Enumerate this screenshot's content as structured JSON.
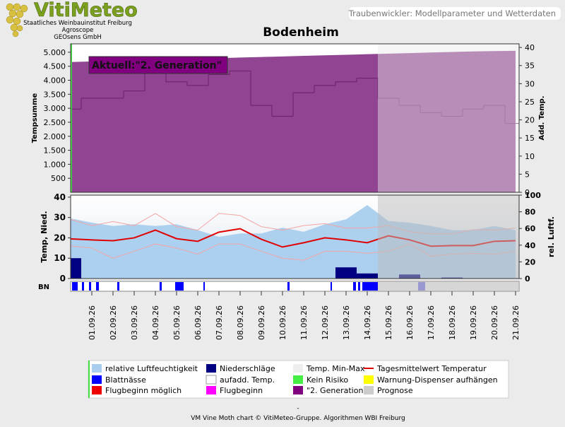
{
  "header": {
    "logo": "VitiMeteo",
    "lines": [
      "Staatliches Weinbauinstitut Freiburg",
      "Agroscope",
      "GEOsens GmbH"
    ],
    "caption": "Traubenwickler: Modellparameter und Wetterdaten"
  },
  "chart_data": [
    {
      "type": "area",
      "title": "Bodenheim",
      "annotation": "Aktuell:\"2. Generation\"",
      "ylabel": "Tempsumme",
      "y2label": "Add. Temp.",
      "ylim": [
        0,
        5300
      ],
      "yticks": [
        500,
        {
          "value": 1000,
          "label": "1.000"
        },
        {
          "value": 1500,
          "label": "1.500"
        },
        {
          "value": 2000,
          "label": "2.000"
        },
        {
          "value": 2500,
          "label": "2.500"
        },
        {
          "value": 3000,
          "label": "3.000"
        },
        {
          "value": 3500,
          "label": "3.500"
        },
        {
          "value": 4000,
          "label": "4.000"
        },
        {
          "value": 4500,
          "label": "4.500"
        },
        {
          "value": 5000,
          "label": "5.000"
        }
      ],
      "y2lim": [
        0,
        41
      ],
      "y2ticks": [
        0,
        5,
        10,
        15,
        20,
        25,
        30,
        35,
        40
      ],
      "series": [
        {
          "type": "area",
          "color": "#8b3a8b",
          "values": [
            4650,
            4670,
            4690,
            4710,
            4730,
            4750,
            4770,
            4790,
            4810,
            4830,
            4850,
            4870,
            4890,
            4910,
            4930,
            4950,
            4970,
            4990,
            5010,
            5030,
            5040,
            5050
          ]
        },
        {
          "type": "step",
          "axis": "y2",
          "color": "#6a1f6a",
          "values": [
            23,
            26,
            26,
            28,
            33,
            30.5,
            29.5,
            32.5,
            33.5,
            24,
            21,
            27.5,
            29.5,
            30.5,
            31.5,
            26,
            24,
            22,
            21,
            23,
            24,
            19
          ]
        }
      ]
    },
    {
      "type": "line",
      "ylabel": "Temp, Nied.",
      "y2label": "rel. Luftf.",
      "strip_label": "BN",
      "categories": [
        null,
        "01.09.26",
        "02.09.26",
        "03.09.26",
        "04.09.26",
        "05.09.26",
        "06.09.26",
        "07.09.26",
        "08.09.26",
        "09.09.26",
        "10.09.26",
        "11.09.26",
        "12.09.26",
        "13.09.26",
        "14.09.26",
        "15.09.26",
        "16.09.26",
        "17.09.26",
        "18.09.26",
        "19.09.26",
        "20.09.26",
        "21.09.26"
      ],
      "ylim": [
        0,
        41
      ],
      "yticks": [
        0,
        10,
        20,
        30,
        40
      ],
      "y2lim": [
        0,
        100
      ],
      "y2ticks": [
        0,
        20,
        40,
        60,
        80,
        100
      ],
      "series": [
        {
          "type": "area",
          "axis": "y2",
          "color": "#a9cdee",
          "values": [
            72,
            67,
            63,
            65,
            63,
            65,
            58,
            50,
            54,
            54,
            61,
            56,
            65,
            71,
            88,
            69,
            67,
            63,
            58,
            58,
            63,
            58
          ]
        },
        {
          "type": "line",
          "color": "#f4a5a5",
          "values": [
            29,
            26,
            28,
            26,
            32,
            25.5,
            23.8,
            32,
            31,
            25.5,
            23.8,
            26,
            27,
            24.8,
            24.8,
            26,
            23,
            22,
            22,
            24,
            23.8,
            24.8
          ]
        },
        {
          "type": "line",
          "color": "#f4a5a5",
          "values": [
            16,
            15,
            10,
            13.4,
            17,
            15,
            12,
            17,
            17,
            13.4,
            10,
            9,
            13.4,
            13.4,
            12.4,
            13.4,
            17,
            11,
            12,
            12.4,
            12,
            13.4
          ]
        },
        {
          "type": "line",
          "color": "#e00000",
          "values": [
            19.5,
            19,
            18.6,
            20,
            23.8,
            19.6,
            18.3,
            22.8,
            24.5,
            19.3,
            15.5,
            17.6,
            20,
            19,
            17.6,
            21,
            19,
            15.9,
            16.2,
            16.2,
            18.3,
            18.6
          ]
        },
        {
          "type": "bar",
          "color": "#000080",
          "values": [
            10,
            0,
            0,
            0,
            0,
            0,
            0,
            0,
            0,
            0,
            0,
            0,
            0,
            5.5,
            2.5,
            0,
            2,
            0,
            0.5,
            0,
            0,
            0
          ]
        }
      ]
    }
  ],
  "legend": [
    {
      "label": "relative Luftfeuchtigkeit",
      "color": "#a9cdee"
    },
    {
      "label": "Niederschläge",
      "color": "#000080"
    },
    {
      "label": "Temp. Min-Max",
      "color": "#eeeeee"
    },
    {
      "label": "Tagesmittelwert Temperatur",
      "color": "#e00000"
    },
    {
      "label": "Blattnässe",
      "color": "#0000ff"
    },
    {
      "label": "aufadd. Temp.",
      "color": "#ffffff"
    },
    {
      "label": "Kein Risiko",
      "color": "#44ee44"
    },
    {
      "label": "Warnung-Dispenser aufhängen",
      "color": "#ffff00"
    },
    {
      "label": "Flugbeginn möglich",
      "color": "#ee0000"
    },
    {
      "label": "Flugbeginn",
      "color": "#ff00ff"
    },
    {
      "label": "\"2. Generation\"",
      "color": "#800080"
    },
    {
      "label": "Prognose",
      "color": "#cccccc"
    }
  ],
  "footer": {
    "dash": "-",
    "text": "VM Vine Moth chart © VitiMeteo-Gruppe. Algorithmen WBI Freiburg"
  }
}
